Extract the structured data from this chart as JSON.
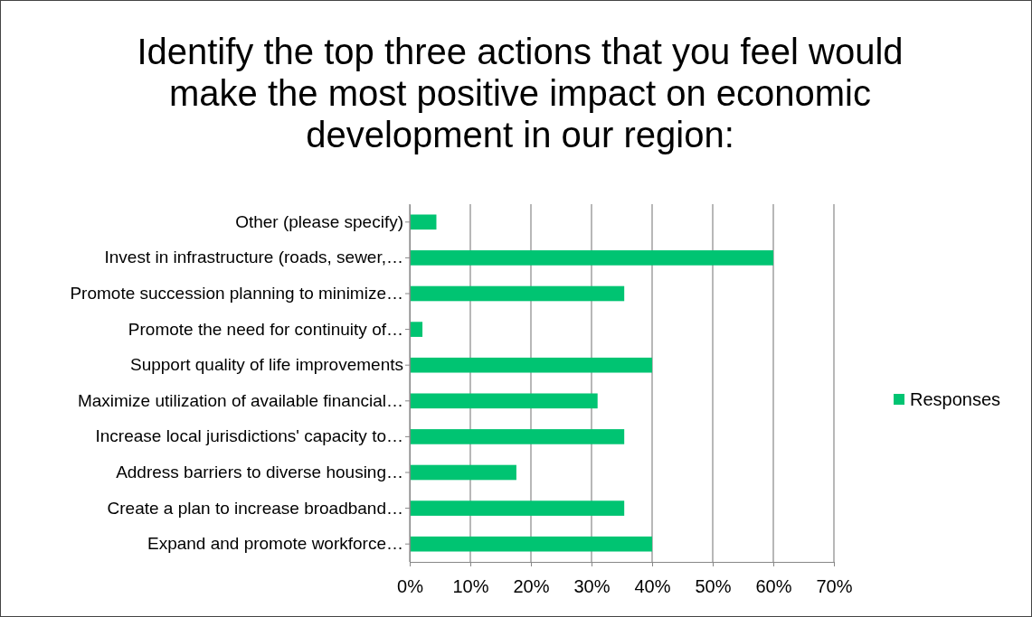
{
  "chart_data": {
    "type": "bar",
    "orientation": "horizontal",
    "title": "Identify the top three actions that you feel would make the most positive impact on economic development in our region:",
    "categories": [
      "Other (please specify)",
      "Invest in infrastructure (roads, sewer,…",
      "Promote succession planning to minimize…",
      "Promote the need for continuity of…",
      "Support quality of life improvements",
      "Maximize utilization of available financial…",
      "Increase local jurisdictions' capacity to…",
      "Address barriers to diverse housing…",
      "Create a plan to increase broadband…",
      "Expand and promote workforce…"
    ],
    "series": [
      {
        "name": "Responses",
        "color": "#00c472",
        "values": [
          4.4,
          60,
          35.4,
          2.1,
          40,
          31,
          35.4,
          17.6,
          35.4,
          40
        ]
      }
    ],
    "xlim": [
      0,
      70
    ],
    "xticks": [
      {
        "value": 0,
        "label": "0%"
      },
      {
        "value": 10,
        "label": "10%"
      },
      {
        "value": 20,
        "label": "20%"
      },
      {
        "value": 30,
        "label": "30%"
      },
      {
        "value": 40,
        "label": "40%"
      },
      {
        "value": 50,
        "label": "50%"
      },
      {
        "value": 60,
        "label": "60%"
      },
      {
        "value": 70,
        "label": "70%"
      }
    ],
    "grid": "x",
    "legend": "right"
  }
}
